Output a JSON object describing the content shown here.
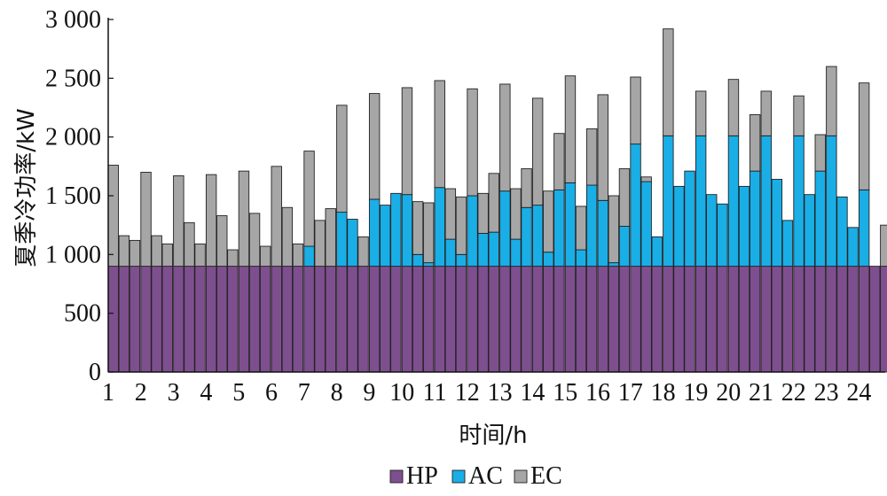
{
  "chart_data": {
    "type": "bar",
    "stacked": true,
    "xlabel": "时间/h",
    "ylabel": "夏季冷功率/kW",
    "ylim": [
      0,
      3000
    ],
    "yticks": [
      "0",
      "500",
      "1 000",
      "1 500",
      "2 000",
      "2 500",
      "3 000"
    ],
    "x_ticks": [
      "1",
      "2",
      "3",
      "4",
      "5",
      "6",
      "7",
      "8",
      "9",
      "10",
      "11",
      "12",
      "13",
      "14",
      "15",
      "16",
      "17",
      "18",
      "19",
      "20",
      "21",
      "22",
      "23",
      "24"
    ],
    "bars_per_hour": 3,
    "legend_position": "bottom",
    "series": [
      {
        "name": "HP",
        "color": "#7e4f8e",
        "values": [
          900,
          900,
          900,
          900,
          900,
          900,
          900,
          900,
          900,
          900,
          900,
          900,
          900,
          900,
          900,
          900,
          900,
          900,
          900,
          900,
          900,
          900,
          900,
          900,
          900,
          900,
          900,
          900,
          900,
          900,
          900,
          900,
          900,
          900,
          900,
          900,
          900,
          900,
          900,
          900,
          900,
          900,
          900,
          900,
          900,
          900,
          900,
          900,
          900,
          900,
          900,
          900,
          900,
          900,
          900,
          900,
          900,
          900,
          900,
          900,
          900,
          900,
          900,
          900,
          900,
          900,
          900,
          900,
          900,
          900,
          900,
          900
        ]
      },
      {
        "name": "AC",
        "color": "#1aaee6",
        "values": [
          0,
          0,
          0,
          0,
          0,
          0,
          0,
          0,
          0,
          0,
          0,
          0,
          0,
          0,
          0,
          0,
          0,
          0,
          170,
          0,
          0,
          460,
          400,
          0,
          570,
          520,
          620,
          610,
          100,
          30,
          670,
          230,
          100,
          600,
          280,
          290,
          640,
          230,
          500,
          520,
          120,
          650,
          710,
          140,
          690,
          560,
          30,
          340,
          1040,
          720,
          250,
          1110,
          680,
          810,
          1110,
          610,
          530,
          1110,
          680,
          810,
          1110,
          740,
          390,
          1110,
          610,
          810,
          1110,
          590,
          330,
          650,
          0,
          0
        ]
      },
      {
        "name": "EC",
        "color": "#a6a6a6",
        "values": [
          860,
          260,
          220,
          800,
          260,
          190,
          770,
          370,
          190,
          780,
          430,
          140,
          810,
          450,
          170,
          850,
          500,
          190,
          810,
          390,
          490,
          910,
          0,
          250,
          900,
          0,
          0,
          910,
          450,
          510,
          910,
          430,
          490,
          910,
          340,
          500,
          910,
          430,
          330,
          910,
          520,
          480,
          910,
          370,
          480,
          900,
          570,
          490,
          570,
          40,
          0,
          910,
          0,
          0,
          380,
          0,
          0,
          480,
          0,
          480,
          380,
          0,
          0,
          340,
          0,
          310,
          590,
          0,
          0,
          910,
          0,
          350
        ]
      }
    ]
  }
}
